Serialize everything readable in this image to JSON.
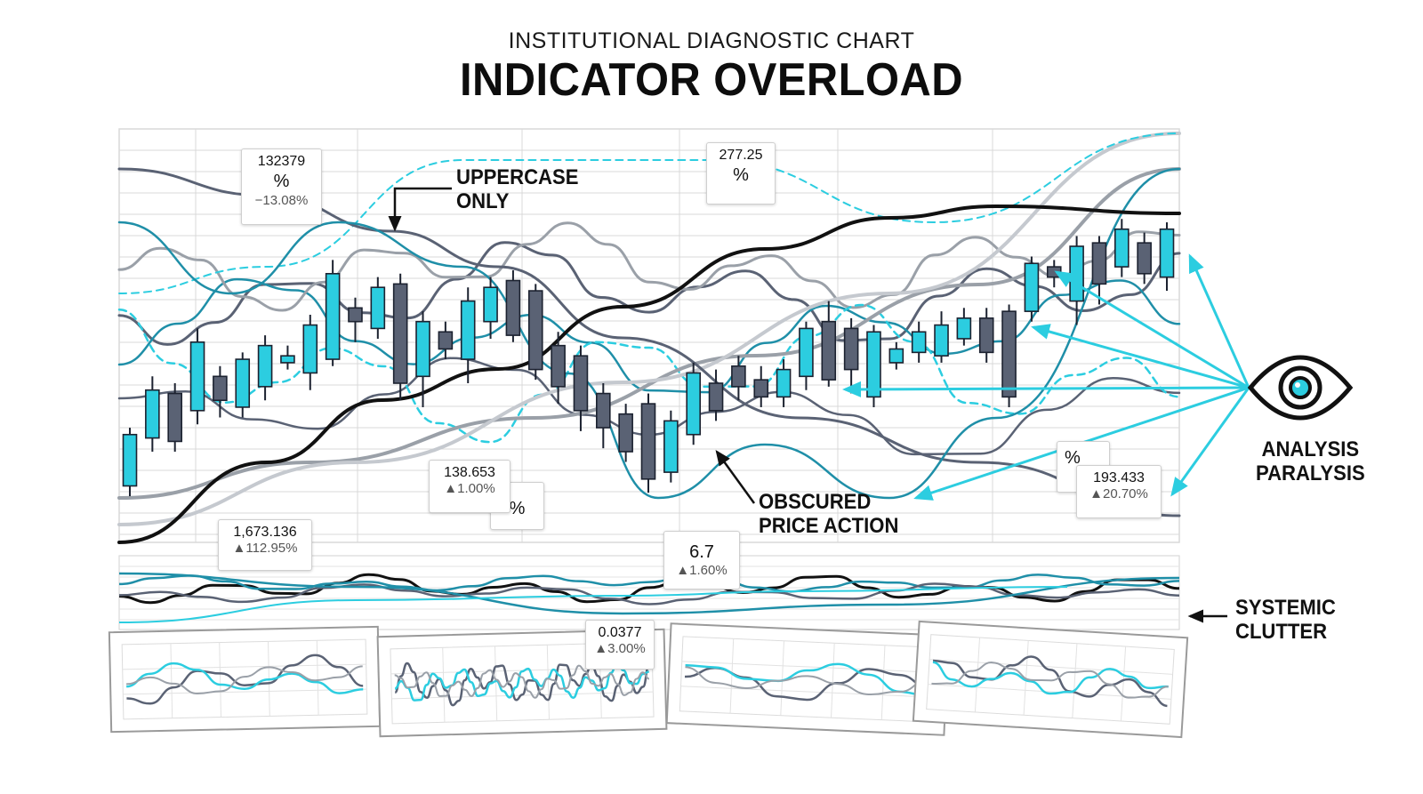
{
  "header": {
    "subtitle": "INSTITUTIONAL DIAGNOSTIC CHART",
    "title": "INDICATOR OVERLOAD"
  },
  "annotations": {
    "uppercase_only": [
      "UPPERCASE",
      "ONLY"
    ],
    "obscured_price_action": [
      "OBSCURED",
      "PRICE ACTION"
    ],
    "analysis_paralysis": [
      "ANALYSIS",
      "PARALYSIS"
    ],
    "systemic_clutter": [
      "SYSTEMIC",
      "CLUTTER"
    ]
  },
  "callouts": [
    {
      "value": "132379",
      "pct": "%",
      "change": "−13.08%"
    },
    {
      "value": "277.25",
      "pct": "%",
      "change": ""
    },
    {
      "value": "138.653",
      "pct": "",
      "change": "▲1.00%"
    },
    {
      "value": "",
      "pct": "%",
      "change": ""
    },
    {
      "value": "1,673.136",
      "pct": "",
      "change": "▲112.95%"
    },
    {
      "value": "6.7",
      "pct": "",
      "change": "▲1.60%"
    },
    {
      "value": "",
      "pct": "%",
      "change": ""
    },
    {
      "value": "193.433",
      "pct": "",
      "change": "▲20.70%"
    },
    {
      "value": "0.0377",
      "pct": "",
      "change": "▲3.00%"
    }
  ],
  "icons": {
    "eye": "eye-icon"
  },
  "colors": {
    "cyan": "#2ccde0",
    "teal": "#1f8fa8",
    "slate": "#5a6274",
    "gray": "#9aa0a8",
    "black": "#111111",
    "grid": "#d9d9d9"
  },
  "chart_data": {
    "type": "candlestick",
    "title": "INDICATOR OVERLOAD",
    "ylim": [
      0,
      100
    ],
    "grid": true,
    "candles": [
      {
        "o": 10,
        "c": 25,
        "h": 27,
        "l": 7
      },
      {
        "o": 24,
        "c": 38,
        "h": 42,
        "l": 20
      },
      {
        "o": 37,
        "c": 23,
        "h": 40,
        "l": 20
      },
      {
        "o": 32,
        "c": 52,
        "h": 56,
        "l": 28
      },
      {
        "o": 42,
        "c": 35,
        "h": 45,
        "l": 30
      },
      {
        "o": 33,
        "c": 47,
        "h": 49,
        "l": 30
      },
      {
        "o": 39,
        "c": 51,
        "h": 54,
        "l": 35
      },
      {
        "o": 46,
        "c": 48,
        "h": 51,
        "l": 44
      },
      {
        "o": 43,
        "c": 57,
        "h": 60,
        "l": 38
      },
      {
        "o": 47,
        "c": 72,
        "h": 76,
        "l": 45
      },
      {
        "o": 62,
        "c": 58,
        "h": 65,
        "l": 52
      },
      {
        "o": 56,
        "c": 68,
        "h": 71,
        "l": 53
      },
      {
        "o": 69,
        "c": 40,
        "h": 72,
        "l": 35
      },
      {
        "o": 42,
        "c": 58,
        "h": 61,
        "l": 33
      },
      {
        "o": 55,
        "c": 50,
        "h": 58,
        "l": 47
      },
      {
        "o": 47,
        "c": 64,
        "h": 68,
        "l": 40
      },
      {
        "o": 58,
        "c": 68,
        "h": 71,
        "l": 53
      },
      {
        "o": 70,
        "c": 54,
        "h": 73,
        "l": 52
      },
      {
        "o": 67,
        "c": 44,
        "h": 69,
        "l": 41
      },
      {
        "o": 51,
        "c": 39,
        "h": 55,
        "l": 34
      },
      {
        "o": 48,
        "c": 32,
        "h": 51,
        "l": 26
      },
      {
        "o": 37,
        "c": 27,
        "h": 40,
        "l": 21
      },
      {
        "o": 31,
        "c": 20,
        "h": 34,
        "l": 17
      },
      {
        "o": 34,
        "c": 12,
        "h": 37,
        "l": 8
      },
      {
        "o": 14,
        "c": 29,
        "h": 32,
        "l": 11
      },
      {
        "o": 25,
        "c": 43,
        "h": 46,
        "l": 22
      },
      {
        "o": 40,
        "c": 32,
        "h": 44,
        "l": 29
      },
      {
        "o": 45,
        "c": 39,
        "h": 48,
        "l": 35
      },
      {
        "o": 41,
        "c": 36,
        "h": 45,
        "l": 33
      },
      {
        "o": 36,
        "c": 44,
        "h": 47,
        "l": 33
      },
      {
        "o": 42,
        "c": 56,
        "h": 58,
        "l": 38
      },
      {
        "o": 58,
        "c": 41,
        "h": 64,
        "l": 39
      },
      {
        "o": 56,
        "c": 44,
        "h": 59,
        "l": 37
      },
      {
        "o": 36,
        "c": 55,
        "h": 57,
        "l": 33
      },
      {
        "o": 46,
        "c": 50,
        "h": 52,
        "l": 44
      },
      {
        "o": 49,
        "c": 55,
        "h": 58,
        "l": 46
      },
      {
        "o": 48,
        "c": 57,
        "h": 61,
        "l": 46
      },
      {
        "o": 53,
        "c": 59,
        "h": 62,
        "l": 51
      },
      {
        "o": 59,
        "c": 49,
        "h": 62,
        "l": 46
      },
      {
        "o": 61,
        "c": 36,
        "h": 63,
        "l": 33
      },
      {
        "o": 61,
        "c": 75,
        "h": 77,
        "l": 58
      },
      {
        "o": 74,
        "c": 71,
        "h": 76,
        "l": 68
      },
      {
        "o": 64,
        "c": 80,
        "h": 83,
        "l": 57
      },
      {
        "o": 81,
        "c": 69,
        "h": 83,
        "l": 63
      },
      {
        "o": 74,
        "c": 85,
        "h": 88,
        "l": 71
      },
      {
        "o": 81,
        "c": 72,
        "h": 84,
        "l": 69
      },
      {
        "o": 71,
        "c": 85,
        "h": 87,
        "l": 67
      }
    ]
  }
}
